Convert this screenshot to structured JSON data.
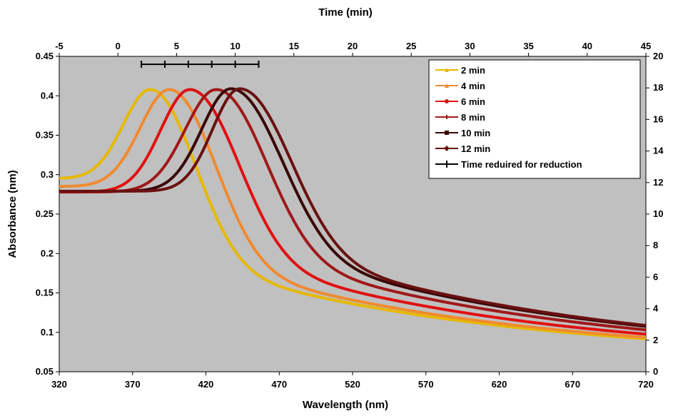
{
  "chart_data": {
    "type": "line",
    "title": "",
    "xlabel": "Wavelength (nm)",
    "ylabel": "Absorbance (nm)",
    "x2label": "Time (min)",
    "xlim": [
      320,
      720
    ],
    "ylim": [
      0.05,
      0.45
    ],
    "x2lim": [
      -5,
      45
    ],
    "y2lim": [
      0,
      20
    ],
    "xticks": [
      320,
      370,
      420,
      470,
      520,
      570,
      620,
      670,
      720
    ],
    "yticks": [
      0.05,
      0.1,
      0.15,
      0.2,
      0.25,
      0.3,
      0.35,
      0.4,
      0.45
    ],
    "x2ticks": [
      -5,
      0,
      5,
      10,
      15,
      20,
      25,
      30,
      35,
      40,
      45
    ],
    "y2ticks": [
      0,
      2,
      4,
      6,
      8,
      10,
      12,
      14,
      16,
      18,
      20
    ],
    "grid": false,
    "legend_position": "top-right",
    "plot_background": "#c0c0c0",
    "series": [
      {
        "name": "2 min",
        "color": "#e6b800",
        "marker": "triangle",
        "baseline": 0.295,
        "peak_x": 382,
        "peak_y": 0.408,
        "w_left": 26,
        "w_right": 41,
        "tail_a": 0.14,
        "tail_t": 200,
        "tail_c": 0.066
      },
      {
        "name": "4 min",
        "color": "#f08a30",
        "marker": "triangle",
        "baseline": 0.285,
        "peak_x": 395,
        "peak_y": 0.408,
        "w_left": 28,
        "w_right": 42,
        "tail_a": 0.14,
        "tail_t": 200,
        "tail_c": 0.066
      },
      {
        "name": "6 min",
        "color": "#e01010",
        "marker": "circle",
        "baseline": 0.278,
        "peak_x": 409,
        "peak_y": 0.408,
        "w_left": 28,
        "w_right": 44,
        "tail_a": 0.15,
        "tail_t": 200,
        "tail_c": 0.066
      },
      {
        "name": "8 min",
        "color": "#a01818",
        "marker": "plus",
        "baseline": 0.278,
        "peak_x": 427,
        "peak_y": 0.408,
        "w_left": 30,
        "w_right": 45,
        "tail_a": 0.155,
        "tail_t": 205,
        "tail_c": 0.066
      },
      {
        "name": "10 min",
        "color": "#3a0606",
        "marker": "square",
        "baseline": 0.279,
        "peak_x": 437,
        "peak_y": 0.409,
        "w_left": 28,
        "w_right": 46,
        "tail_a": 0.16,
        "tail_t": 210,
        "tail_c": 0.066
      },
      {
        "name": "12 min",
        "color": "#6a1010",
        "marker": "diamond",
        "baseline": 0.279,
        "peak_x": 443,
        "peak_y": 0.409,
        "w_left": 26,
        "w_right": 46,
        "tail_a": 0.16,
        "tail_t": 210,
        "tail_c": 0.066
      }
    ],
    "reduction_series": {
      "name": "Time reduired for reduction",
      "color": "#000000",
      "x_min": [
        2,
        4,
        6,
        8,
        10,
        12
      ],
      "y": [
        19.5,
        19.5,
        19.5,
        19.5,
        19.5,
        19.5
      ]
    }
  }
}
